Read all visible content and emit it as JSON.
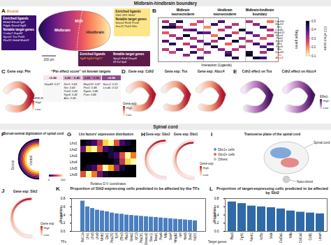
{
  "sections": [
    "Midbrain-hindbrain boundary",
    "Spinal cord"
  ],
  "gene_exp_legend": {
    "title": "Gene exp",
    "high": "High",
    "low": "Low"
  },
  "A": {
    "letter": "A",
    "rostral": "Rostral",
    "scale_bar": "200 µm",
    "regions": [
      "Midbrain",
      "MHB",
      "Hindbrain"
    ],
    "heading_ligands": "Enriched ligands",
    "heading_targets": "Notable target genes",
    "boxes": [
      {
        "ligands": [
          "Efnb2  Efna5  Igf2",
          "Pdgfc  Nrxn3  Fgf9"
        ],
        "targets": [
          "Crabp1  Gap43",
          "Spon1  Tox  Pak5",
          "Fbxl11  Heb4  Mab21"
        ]
      },
      {
        "ligands": [
          "Dlk1  Dll1  Ntrk2"
        ],
        "targets": [
          "Stmn2  Ret6  Prnt8",
          "Sox11  Pak3  Nfia"
        ]
      },
      {
        "ligands": [
          "Fgf8  Fgf10  Fgf17"
        ],
        "targets": [
          "Spry1  Etv4  Dusp6",
          "Il17rd  Sp5"
        ]
      }
    ]
  },
  "B": {
    "letter": "B",
    "groups": [
      "Midbrain neuroectoderm",
      "Hindbrain neuroectoderm",
      "Midbrain-hindbrain boundary"
    ],
    "group_sizes": [
      6,
      6,
      4
    ],
    "xlabel": "Interaction (Ligands)",
    "ylabel": "Target genes",
    "rows": [
      "Cdc25b",
      "Fbxl11",
      "Nes",
      "Lrrc4c",
      "Mapk10",
      "Nrxn1",
      "Pak3",
      "Sox11",
      "Dlk1",
      "Rgs6",
      "Nin",
      "Gap43",
      "Tox",
      "Abcc4"
    ],
    "highlight": [
      "Tox",
      "Abcc4"
    ],
    "cells": [
      [
        0.32,
        null,
        0.45,
        null,
        null,
        0.28,
        null,
        null,
        0.4,
        null,
        null,
        null,
        0.3,
        null,
        null,
        0.22
      ],
      [
        null,
        0.38,
        null,
        null,
        0.25,
        null,
        null,
        0.42,
        null,
        null,
        0.3,
        null,
        null,
        0.35,
        null,
        null
      ],
      [
        0.45,
        0.47,
        0.3,
        null,
        null,
        null,
        0.2,
        null,
        null,
        0.33,
        null,
        null,
        null,
        null,
        0.44,
        null
      ],
      [
        null,
        null,
        null,
        0.36,
        0.4,
        null,
        null,
        null,
        0.28,
        null,
        null,
        0.46,
        null,
        null,
        null,
        0.3
      ],
      [
        0.25,
        null,
        null,
        null,
        null,
        0.42,
        0.38,
        null,
        null,
        null,
        0.26,
        null,
        0.4,
        null,
        null,
        null
      ],
      [
        null,
        0.3,
        null,
        0.48,
        null,
        null,
        null,
        0.22,
        null,
        0.41,
        null,
        null,
        null,
        0.36,
        null,
        0.27
      ],
      [
        null,
        null,
        0.35,
        null,
        0.3,
        null,
        null,
        null,
        0.45,
        null,
        null,
        0.33,
        null,
        null,
        0.25,
        null
      ],
      [
        0.4,
        null,
        null,
        null,
        null,
        0.35,
        null,
        0.3,
        null,
        null,
        0.47,
        null,
        0.28,
        null,
        null,
        null
      ],
      [
        null,
        0.44,
        null,
        0.29,
        null,
        null,
        0.41,
        null,
        null,
        0.24,
        null,
        null,
        null,
        0.42,
        null,
        0.38
      ],
      [
        null,
        null,
        null,
        null,
        0.37,
        null,
        null,
        0.46,
        null,
        null,
        null,
        0.31,
        null,
        null,
        0.39,
        null
      ],
      [
        0.3,
        null,
        0.42,
        null,
        null,
        0.26,
        null,
        null,
        0.34,
        null,
        0.29,
        null,
        null,
        null,
        null,
        0.45
      ],
      [
        null,
        0.27,
        null,
        null,
        0.43,
        null,
        0.32,
        null,
        null,
        0.38,
        null,
        null,
        0.46,
        null,
        0.31,
        null
      ],
      [
        null,
        null,
        null,
        0.34,
        null,
        null,
        null,
        null,
        null,
        0.45,
        null,
        null,
        0.48,
        null,
        null,
        null
      ],
      [
        null,
        null,
        null,
        null,
        null,
        0.39,
        null,
        null,
        null,
        null,
        0.44,
        null,
        null,
        0.47,
        0.41,
        null
      ]
    ],
    "colorbar": {
      "title": "CCI effect score",
      "range": [
        0.1,
        0.5
      ],
      "ticks": [
        0.1,
        0.2,
        0.3,
        0.4,
        0.5
      ]
    }
  },
  "C": {
    "letter": "C",
    "gene_title": "Gene exp: Ptn",
    "table_title": "“Ptn effect score” on known targets",
    "columns": [
      "<0.40",
      "0.40 – 0.45",
      "0.45 – 0.50",
      ">0.50"
    ],
    "column_colors": [
      "#f7e4ef",
      "#e3b5d3",
      "#c07fb2",
      "#8c4a8f"
    ],
    "cells": [
      [
        "Gap43: 0.37"
      ],
      [
        "Nrn1: 0.43",
        "Nin: 0.43",
        "Pak3: 0.43",
        "Rgs6: 0.42",
        "Atrx: 0.45"
      ],
      [
        "Mapk10: 0.47",
        "Pbx1: 0.46",
        "Rgmb: 0.46",
        "Pam: 0.46"
      ],
      [
        "Socs1: 0.51",
        "Lrrc4c: 0.52"
      ]
    ]
  },
  "D": {
    "letter": "D",
    "titles": [
      "Gene exp: Cdh2",
      "Gene exp: Tox",
      "Gene exp: Abcc4"
    ]
  },
  "E": {
    "letter": "E",
    "titles": [
      "Cdh2 effect on Tox",
      "Cdh2 effect on Abcc4"
    ],
    "legend": {
      "title": "Effect",
      "high": "High",
      "low": "Low"
    }
  },
  "F": {
    "letter": "F",
    "title": "Dorsal-ventral digitization of spinal cord",
    "dorsal": "Dorsal",
    "ventral": "Ventral",
    "scale": [
      0,
      100
    ]
  },
  "G": {
    "letter": "G",
    "title": "Lhx factors' expression distribution",
    "xlabel": "Relative D-V coordinates",
    "rows": [
      "Lhx1",
      "Lhx2",
      "Lhx3",
      "Lhx4",
      "Lhx5",
      "Lhx9"
    ],
    "color_range": [
      0,
      1
    ],
    "cells": [
      [
        0,
        0.1,
        0.2,
        0.5,
        0.9,
        1,
        0.6,
        0.2,
        0.1,
        0
      ],
      [
        0.3,
        0.9,
        1,
        0.6,
        0.2,
        0.1,
        0,
        0,
        0,
        0
      ],
      [
        0,
        0,
        0,
        0,
        0,
        0.1,
        0.2,
        0.6,
        1,
        0.7
      ],
      [
        0,
        0,
        0,
        0,
        0,
        0,
        0.1,
        0.5,
        0.9,
        1
      ],
      [
        0,
        0.1,
        0.2,
        0.6,
        1,
        0.8,
        0.4,
        0.1,
        0,
        0
      ],
      [
        0.6,
        1,
        0.7,
        0.3,
        0.1,
        0,
        0,
        0,
        0,
        0
      ]
    ]
  },
  "H": {
    "letter": "H",
    "titles": [
      "Gene exp: Gbx2",
      "Gene exp: Dbx1"
    ]
  },
  "I": {
    "letter": "I",
    "title": "Transverse plane of the spinal cord",
    "legend": [
      {
        "name": "Dbx1+ cells",
        "color": "#5b8fd0"
      },
      {
        "name": "Gbx2+ cells",
        "color": "#e06666"
      },
      {
        "name": "Others",
        "color": "#bbbbbb"
      }
    ],
    "spinal_cord": "Spinal cord",
    "notochord": "Noto-chord"
  },
  "J": {
    "letter": "J",
    "title": "Gene exp: Slit2"
  },
  "chart_data": [
    {
      "type": "bar",
      "letter": "K",
      "title": "Proportion of Slit2-expressing cells predicted to be affected by the TFs",
      "xlabel": "TFs",
      "ylabel": "Proportion",
      "categories": [
        "Bcl11a",
        "Lhx1",
        "Lhx5",
        "Lhx9",
        "Nhlh2",
        "Ebf1",
        "Pou2f2",
        "Tcf4",
        "Zfhx3",
        "Pbx3",
        "Meis2",
        "Klf13",
        "Pou3f1",
        "Onecut2",
        "Sox11",
        "Tead1",
        "Pax6",
        "Nfib",
        "Sox4",
        "Hmgb2",
        "Id4",
        "Hes5",
        "Sox2",
        "Nr2f1"
      ],
      "values": [
        0.74,
        0.6,
        0.56,
        0.52,
        0.5,
        0.48,
        0.45,
        0.43,
        0.42,
        0.4,
        0.39,
        0.38,
        0.37,
        0.36,
        0.35,
        0.34,
        0.33,
        0.32,
        0.31,
        0.3,
        0.29,
        0.28,
        0.27,
        0.26
      ],
      "color": "#4a7fc1",
      "ylim": [
        0,
        0.8
      ],
      "yticks": [
        0,
        0.2,
        0.4,
        0.6,
        0.8
      ]
    },
    {
      "type": "bar",
      "letter": "L",
      "title": "Proportion of target-expressing cells predicted to be affected by Slit2",
      "xlabel": "Target genes",
      "ylabel": "Proportion",
      "categories": [
        "Pbx3",
        "Fgfr1",
        "Nrxn1",
        "Kif5c",
        "Mdk",
        "Col3a1",
        "Nfib",
        "Col1a2",
        "Cd81",
        "Lmo4"
      ],
      "values": [
        0.72,
        0.68,
        0.62,
        0.6,
        0.58,
        0.55,
        0.5,
        0.47,
        0.45,
        0.43
      ],
      "color": "#2f6aa8",
      "ylim": [
        0,
        0.8
      ],
      "yticks": [
        0,
        0.2,
        0.4,
        0.6,
        0.8
      ]
    }
  ]
}
